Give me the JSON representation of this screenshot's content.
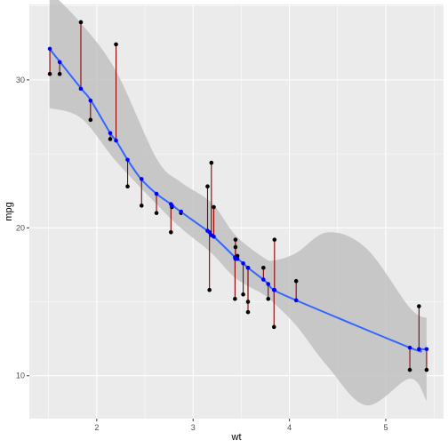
{
  "chart_data": {
    "type": "scatter",
    "xlabel": "wt",
    "ylabel": "mpg",
    "xlim": [
      1.3,
      5.6
    ],
    "ylim": [
      7.1,
      35.1
    ],
    "x_ticks": [
      2,
      3,
      4,
      5
    ],
    "y_ticks": [
      10,
      20,
      30
    ],
    "grid": true,
    "colors": {
      "panel": "#ebebeb",
      "grid": "#ffffff",
      "band": "#bebebe",
      "fit_line": "#3366ff",
      "fit_points": "#0000ff",
      "observed_points": "#000000",
      "residual_segments": "#8b0000"
    },
    "fit_curve": {
      "x": [
        1.51,
        1.62,
        1.84,
        1.94,
        2.14,
        2.2,
        2.32,
        2.46,
        2.62,
        2.77,
        2.87,
        3.15,
        3.17,
        3.19,
        3.215,
        3.435,
        3.44,
        3.46,
        3.52,
        3.57,
        3.73,
        3.78,
        3.84,
        4.07,
        5.25,
        5.345,
        5.424
      ],
      "y": [
        32.1,
        31.2,
        29.4,
        28.6,
        26.4,
        25.9,
        24.6,
        23.3,
        22.3,
        21.6,
        21.1,
        19.8,
        19.7,
        19.5,
        19.4,
        18.0,
        17.9,
        17.9,
        17.6,
        17.3,
        16.5,
        16.2,
        15.8,
        15.1,
        11.9,
        11.8,
        11.8
      ]
    },
    "band": {
      "x": [
        1.51,
        1.84,
        2.2,
        2.62,
        2.87,
        3.19,
        3.44,
        3.73,
        3.84,
        4.07,
        4.4,
        4.8,
        5.25,
        5.424
      ],
      "upper": [
        36.0,
        33.8,
        30.6,
        24.7,
        23.1,
        21.7,
        19.5,
        18.0,
        17.8,
        18.3,
        19.7,
        18.6,
        14.6,
        13.9
      ],
      "lower": [
        28.1,
        27.4,
        24.5,
        21.6,
        20.0,
        18.3,
        16.6,
        15.5,
        14.9,
        13.4,
        10.6,
        8.0,
        9.8,
        8.3
      ]
    },
    "points": [
      {
        "x": 1.513,
        "y": 30.4,
        "fit": 32.1
      },
      {
        "x": 1.615,
        "y": 30.4,
        "fit": 31.2
      },
      {
        "x": 1.835,
        "y": 33.9,
        "fit": 29.4
      },
      {
        "x": 1.935,
        "y": 27.3,
        "fit": 28.6
      },
      {
        "x": 2.14,
        "y": 26.0,
        "fit": 26.4
      },
      {
        "x": 2.2,
        "y": 32.4,
        "fit": 25.9
      },
      {
        "x": 2.32,
        "y": 22.8,
        "fit": 24.6
      },
      {
        "x": 2.465,
        "y": 21.5,
        "fit": 23.3
      },
      {
        "x": 2.62,
        "y": 21.0,
        "fit": 22.3
      },
      {
        "x": 2.77,
        "y": 19.7,
        "fit": 21.6
      },
      {
        "x": 2.78,
        "y": 21.4,
        "fit": 21.5
      },
      {
        "x": 2.875,
        "y": 21.0,
        "fit": 21.1
      },
      {
        "x": 3.15,
        "y": 22.8,
        "fit": 19.8
      },
      {
        "x": 3.17,
        "y": 15.8,
        "fit": 19.7
      },
      {
        "x": 3.19,
        "y": 24.4,
        "fit": 19.5
      },
      {
        "x": 3.215,
        "y": 21.4,
        "fit": 19.4
      },
      {
        "x": 3.435,
        "y": 15.2,
        "fit": 18.0
      },
      {
        "x": 3.44,
        "y": 18.7,
        "fit": 17.9
      },
      {
        "x": 3.44,
        "y": 19.2,
        "fit": 17.9
      },
      {
        "x": 3.46,
        "y": 18.1,
        "fit": 17.9
      },
      {
        "x": 3.52,
        "y": 15.5,
        "fit": 17.6
      },
      {
        "x": 3.57,
        "y": 14.3,
        "fit": 17.3
      },
      {
        "x": 3.57,
        "y": 15.0,
        "fit": 17.3
      },
      {
        "x": 3.73,
        "y": 17.3,
        "fit": 16.5
      },
      {
        "x": 3.78,
        "y": 15.2,
        "fit": 16.2
      },
      {
        "x": 3.84,
        "y": 13.3,
        "fit": 15.8
      },
      {
        "x": 3.845,
        "y": 19.2,
        "fit": 15.8
      },
      {
        "x": 4.07,
        "y": 16.4,
        "fit": 15.1
      },
      {
        "x": 5.25,
        "y": 10.4,
        "fit": 11.9
      },
      {
        "x": 5.345,
        "y": 14.7,
        "fit": 11.8
      },
      {
        "x": 5.424,
        "y": 10.4,
        "fit": 11.8
      }
    ]
  }
}
